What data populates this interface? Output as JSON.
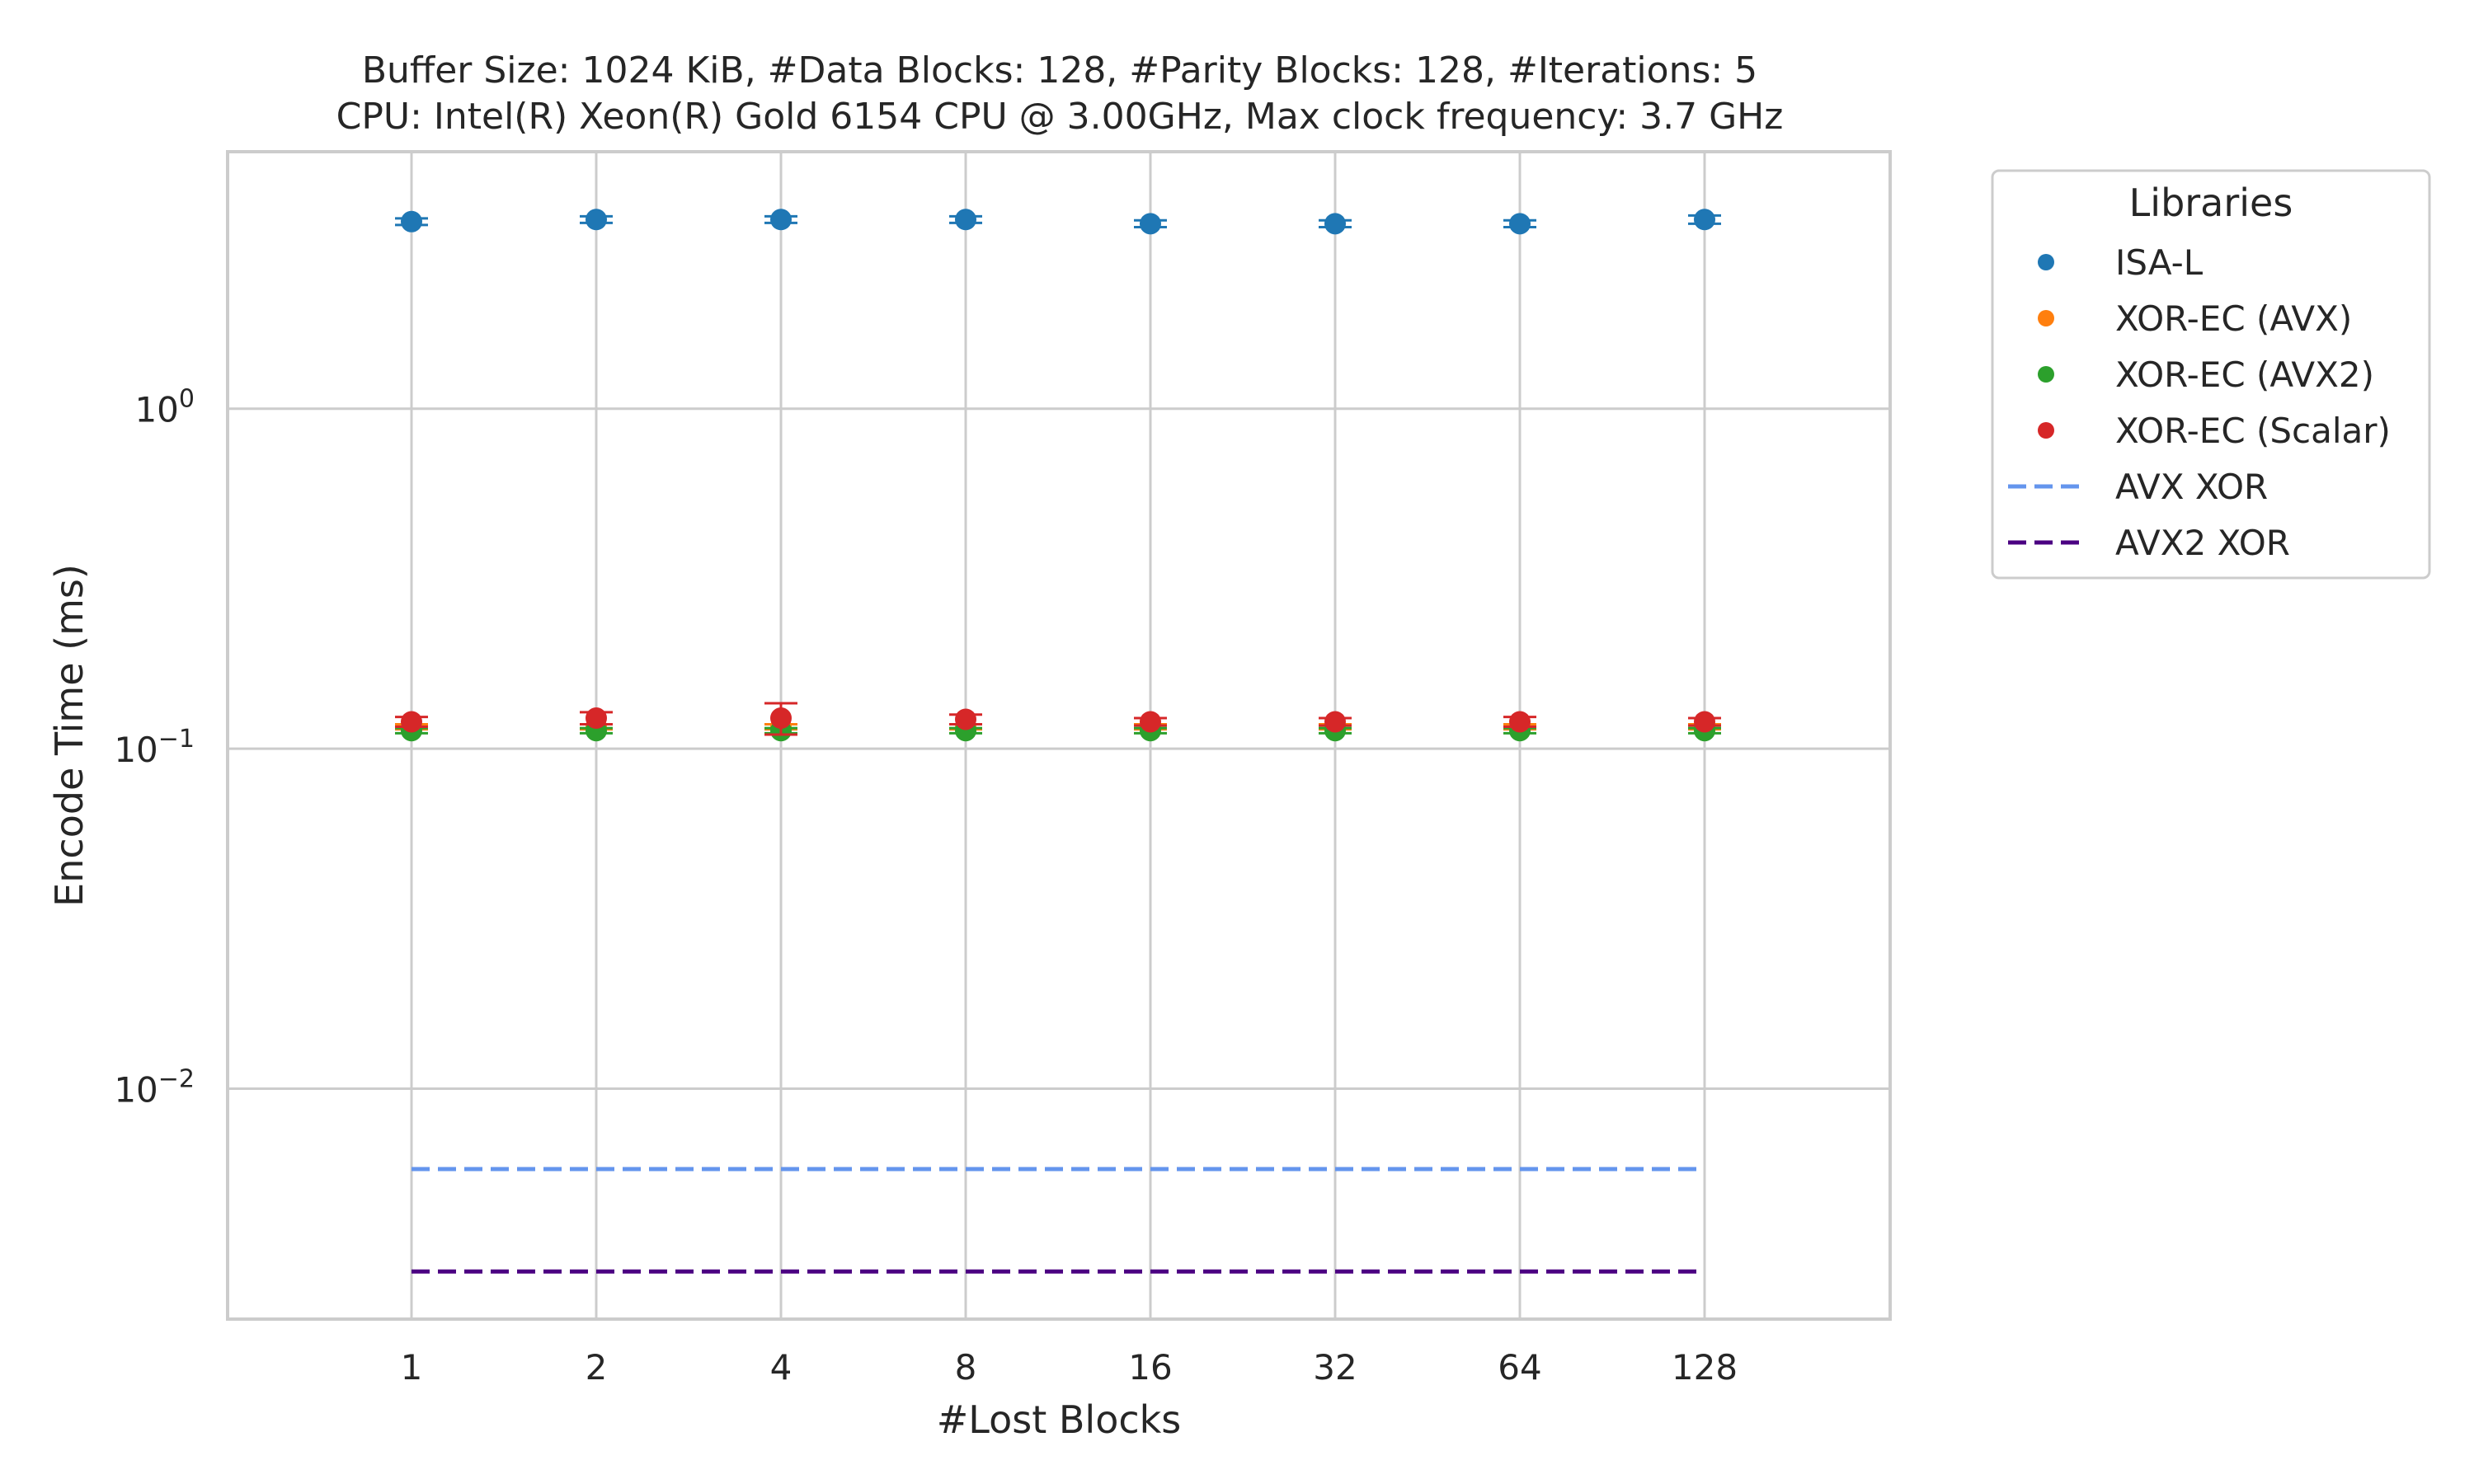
{
  "chart_data": {
    "type": "scatter",
    "title": "Buffer Size: 1024 KiB, #Data Blocks: 128, #Parity Blocks: 128, #Iterations: 5",
    "subtitle": "CPU: Intel(R) Xeon(R) Gold 6154 CPU @ 3.00GHz, Max clock frequency: 3.7 GHz",
    "xlabel": "#Lost Blocks",
    "ylabel": "Encode Time (ms)",
    "yscale": "log",
    "ylim": [
      0.0021,
      5.7
    ],
    "categories": [
      "1",
      "2",
      "4",
      "8",
      "16",
      "32",
      "64",
      "128"
    ],
    "y_ticks": [
      {
        "value": 1,
        "base": "10",
        "exp": "0"
      },
      {
        "value": 0.1,
        "base": "10",
        "exp": "−1"
      },
      {
        "value": 0.01,
        "base": "10",
        "exp": "−2"
      }
    ],
    "grid": true,
    "legend": {
      "title": "Libraries",
      "placement": "outside-upper-right"
    },
    "series": [
      {
        "name": "ISA-L",
        "kind": "point",
        "color": "#1f77b4",
        "values": [
          3.55,
          3.6,
          3.6,
          3.6,
          3.5,
          3.5,
          3.5,
          3.6
        ],
        "err": [
          0.08,
          0.08,
          0.08,
          0.08,
          0.08,
          0.08,
          0.08,
          0.1
        ]
      },
      {
        "name": "XOR-EC (AVX)",
        "kind": "point",
        "color": "#ff7f0e",
        "values": [
          0.116,
          0.116,
          0.116,
          0.116,
          0.116,
          0.116,
          0.116,
          0.116
        ],
        "err": [
          0.002,
          0.002,
          0.002,
          0.002,
          0.002,
          0.002,
          0.002,
          0.002
        ]
      },
      {
        "name": "XOR-EC (AVX2)",
        "kind": "point",
        "color": "#2ca02c",
        "values": [
          0.113,
          0.113,
          0.113,
          0.113,
          0.113,
          0.113,
          0.113,
          0.113
        ],
        "err": [
          0.002,
          0.002,
          0.002,
          0.002,
          0.002,
          0.002,
          0.002,
          0.002
        ]
      },
      {
        "name": "XOR-EC (Scalar)",
        "kind": "point",
        "color": "#d62728",
        "values": [
          0.12,
          0.123,
          0.123,
          0.122,
          0.12,
          0.12,
          0.12,
          0.12
        ],
        "err": [
          0.004,
          0.005,
          0.013,
          0.004,
          0.003,
          0.003,
          0.004,
          0.003
        ]
      },
      {
        "name": "AVX XOR",
        "kind": "dashed-line",
        "color": "#6495ed",
        "values": [
          0.0058,
          0.0058,
          0.0058,
          0.0058,
          0.0058,
          0.0058,
          0.0058,
          0.0058
        ]
      },
      {
        "name": "AVX2 XOR",
        "kind": "dashed-line",
        "color": "#4b0082",
        "values": [
          0.0029,
          0.0029,
          0.0029,
          0.0029,
          0.0029,
          0.0029,
          0.0029,
          0.0029
        ]
      }
    ]
  }
}
